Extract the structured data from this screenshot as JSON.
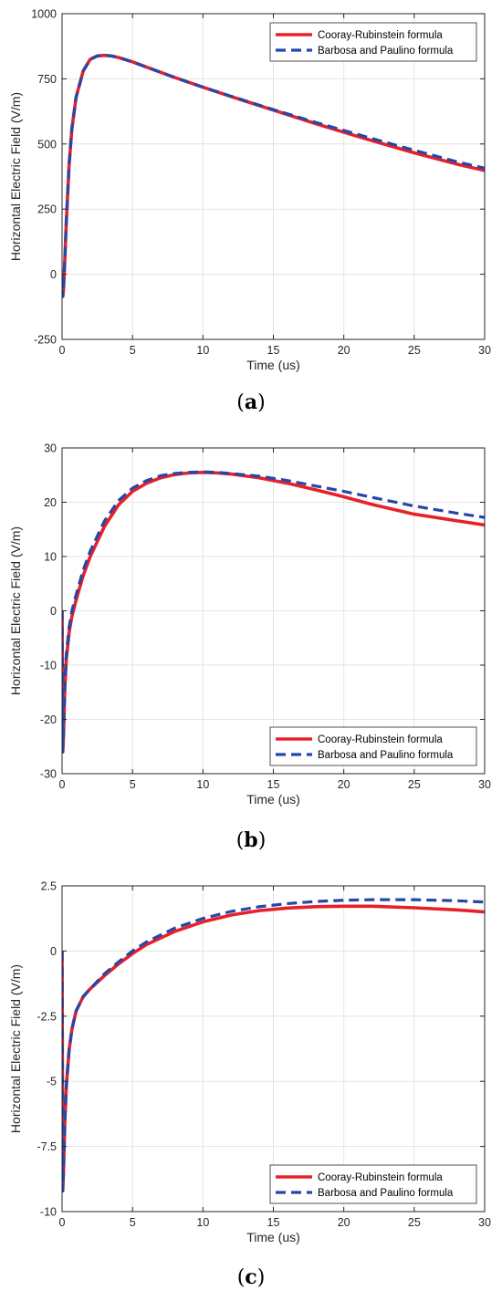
{
  "colors": {
    "cooray": "#e8202a",
    "barbosa": "#2547a8",
    "grid": "#e3e3e3",
    "axis": "#262626"
  },
  "chart_data": [
    {
      "type": "line",
      "caption": "a",
      "xlabel": "Time (us)",
      "ylabel": "Horizontal Electric Field (V/m)",
      "xlim": [
        0,
        30
      ],
      "ylim": [
        -250,
        1000
      ],
      "xticks": [
        0,
        5,
        10,
        15,
        20,
        25,
        30
      ],
      "xtick_labels": [
        "0",
        "5",
        "10",
        "15",
        "20",
        "25",
        "30"
      ],
      "yticks": [
        -250,
        0,
        250,
        500,
        750,
        1000
      ],
      "ytick_labels": [
        "-250",
        "0",
        "250",
        "500",
        "750",
        "1000"
      ],
      "grid": true,
      "legend_position": "top-right",
      "series": [
        {
          "name": "Cooray-Rubinstein formula",
          "style": "solid",
          "color": "#e8202a",
          "x": [
            0,
            0.05,
            0.1,
            0.2,
            0.3,
            0.5,
            0.7,
            1.0,
            1.5,
            2.0,
            2.5,
            3.0,
            3.5,
            4.0,
            5,
            6,
            8,
            10,
            12,
            15,
            18,
            20,
            22,
            25,
            28,
            30
          ],
          "y": [
            0,
            -85,
            -60,
            60,
            200,
            420,
            560,
            680,
            780,
            825,
            838,
            840,
            838,
            832,
            815,
            795,
            755,
            718,
            682,
            630,
            578,
            545,
            513,
            466,
            423,
            398
          ]
        },
        {
          "name": "Barbosa and Paulino formula",
          "style": "dashed",
          "color": "#2547a8",
          "x": [
            0,
            0.05,
            0.1,
            0.2,
            0.3,
            0.5,
            0.7,
            1.0,
            1.5,
            2.0,
            2.5,
            3.0,
            3.5,
            4.0,
            5,
            6,
            8,
            10,
            12,
            15,
            18,
            20,
            22,
            25,
            28,
            30
          ],
          "y": [
            0,
            -85,
            -60,
            60,
            200,
            420,
            560,
            680,
            780,
            825,
            838,
            840,
            838,
            832,
            815,
            795,
            755,
            718,
            683,
            632,
            583,
            552,
            521,
            476,
            432,
            407
          ]
        }
      ]
    },
    {
      "type": "line",
      "caption": "b",
      "xlabel": "Time (us)",
      "ylabel": "Horizontal Electric Field (V/m)",
      "xlim": [
        0,
        30
      ],
      "ylim": [
        -30,
        30
      ],
      "xticks": [
        0,
        5,
        10,
        15,
        20,
        25,
        30
      ],
      "xtick_labels": [
        "0",
        "5",
        "10",
        "15",
        "20",
        "25",
        "30"
      ],
      "yticks": [
        -30,
        -20,
        -10,
        0,
        10,
        20,
        30
      ],
      "ytick_labels": [
        "-30",
        "-20",
        "-10",
        "0",
        "10",
        "20",
        "30"
      ],
      "grid": true,
      "legend_position": "bottom-right",
      "series": [
        {
          "name": "Cooray-Rubinstein formula",
          "style": "solid",
          "color": "#e8202a",
          "x": [
            0,
            0.05,
            0.1,
            0.2,
            0.3,
            0.5,
            0.7,
            1.0,
            1.5,
            2,
            3,
            4,
            5,
            6,
            7,
            8,
            9,
            10,
            11,
            12,
            14,
            16,
            18,
            20,
            22,
            25,
            28,
            30
          ],
          "y": [
            0,
            -26,
            -23,
            -14,
            -9,
            -4,
            -1,
            2,
            6.5,
            10,
            15.5,
            19.5,
            22,
            23.5,
            24.5,
            25.1,
            25.4,
            25.5,
            25.4,
            25.2,
            24.5,
            23.5,
            22.3,
            21,
            19.6,
            17.8,
            16.6,
            15.8
          ]
        },
        {
          "name": "Barbosa and Paulino formula",
          "style": "dashed",
          "color": "#2547a8",
          "x": [
            0,
            0.05,
            0.1,
            0.2,
            0.3,
            0.5,
            0.7,
            1.0,
            1.5,
            2,
            3,
            4,
            5,
            6,
            7,
            8,
            9,
            10,
            11,
            12,
            14,
            16,
            18,
            20,
            22,
            25,
            28,
            30
          ],
          "y": [
            0,
            -26,
            -23,
            -13,
            -8,
            -3,
            0,
            3,
            7.5,
            11,
            16.5,
            20.3,
            22.6,
            24,
            24.9,
            25.3,
            25.5,
            25.6,
            25.5,
            25.3,
            24.8,
            24,
            23,
            22,
            20.9,
            19.3,
            18,
            17.2
          ]
        }
      ]
    },
    {
      "type": "line",
      "caption": "c",
      "xlabel": "Time (us)",
      "ylabel": "Horizontal Electric Field (V/m)",
      "xlim": [
        0,
        30
      ],
      "ylim": [
        -10,
        2.5
      ],
      "xticks": [
        0,
        5,
        10,
        15,
        20,
        25,
        30
      ],
      "xtick_labels": [
        "0",
        "5",
        "10",
        "15",
        "20",
        "25",
        "30"
      ],
      "yticks": [
        -10,
        -7.5,
        -5,
        -2.5,
        0,
        2.5
      ],
      "ytick_labels": [
        "-10",
        "-7.5",
        "-5",
        "-2.5",
        "0",
        "2.5"
      ],
      "grid": true,
      "legend_position": "bottom-right",
      "series": [
        {
          "name": "Cooray-Rubinstein formula",
          "style": "solid",
          "color": "#e8202a",
          "x": [
            0,
            0.05,
            0.1,
            0.15,
            0.2,
            0.3,
            0.5,
            0.7,
            1.0,
            1.5,
            2,
            3,
            4,
            5,
            6,
            8,
            10,
            12,
            14,
            16,
            18,
            20,
            22,
            25,
            28,
            30
          ],
          "y": [
            0,
            -9.2,
            -8.5,
            -7.5,
            -6.5,
            -5.2,
            -3.8,
            -3.0,
            -2.3,
            -1.75,
            -1.45,
            -0.95,
            -0.5,
            -0.1,
            0.25,
            0.75,
            1.12,
            1.38,
            1.55,
            1.65,
            1.7,
            1.72,
            1.72,
            1.66,
            1.58,
            1.5
          ]
        },
        {
          "name": "Barbosa and Paulino formula",
          "style": "dashed",
          "color": "#2547a8",
          "x": [
            0,
            0.05,
            0.1,
            0.15,
            0.2,
            0.3,
            0.5,
            0.7,
            1.0,
            1.5,
            2,
            3,
            4,
            5,
            6,
            8,
            10,
            12,
            14,
            16,
            18,
            20,
            22,
            25,
            28,
            30
          ],
          "y": [
            0,
            -9.2,
            -8.5,
            -7.5,
            -6.5,
            -5.2,
            -3.8,
            -3.0,
            -2.3,
            -1.75,
            -1.45,
            -0.88,
            -0.42,
            0,
            0.35,
            0.88,
            1.25,
            1.52,
            1.7,
            1.82,
            1.9,
            1.95,
            1.97,
            1.97,
            1.93,
            1.88
          ]
        }
      ]
    }
  ]
}
